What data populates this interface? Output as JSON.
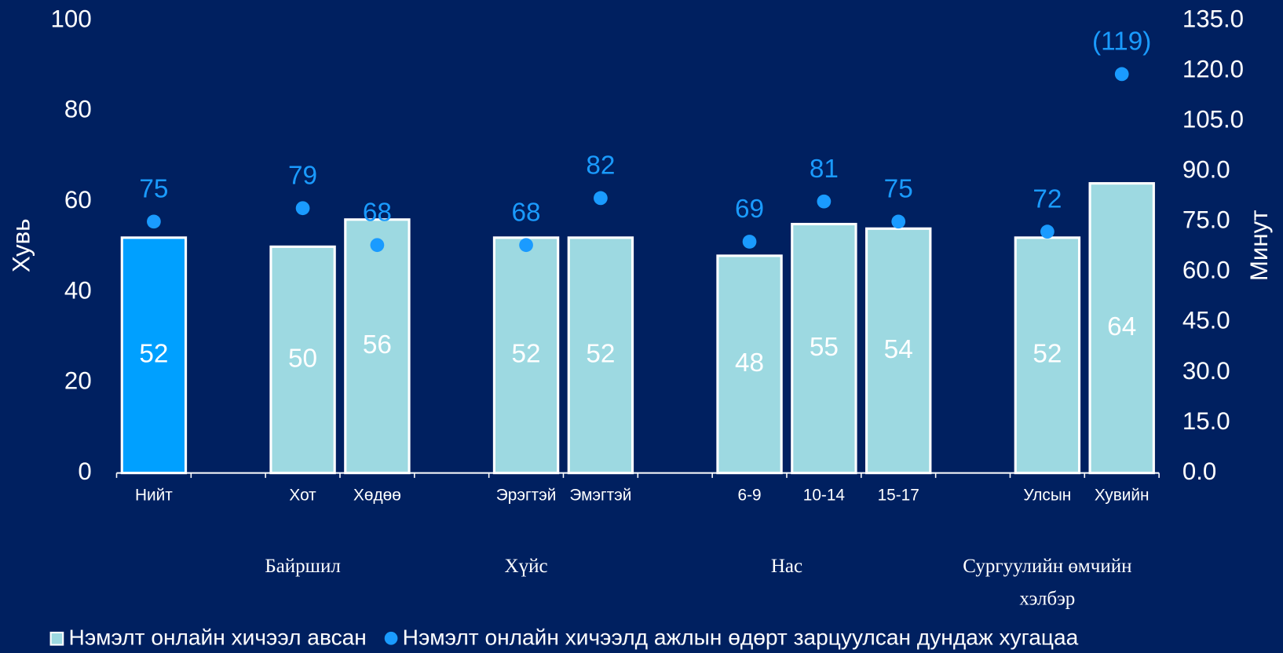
{
  "chart_data": {
    "type": "bar",
    "categories": [
      "Нийт",
      null,
      "Хот",
      "Хөдөө",
      null,
      "Эрэгтэй",
      "Эмэгтэй",
      null,
      "6-9",
      "10-14",
      "15-17",
      null,
      "Улсын",
      "Хувийн"
    ],
    "groups": [
      "Байршил",
      "Хүйс",
      "Нас",
      "Сургуулийн өмчийн хэлбэр"
    ],
    "y_label": "Хувь",
    "y2_label": "Минут",
    "ylim": [
      0,
      100
    ],
    "yticks": [
      0,
      20,
      40,
      60,
      80,
      100
    ],
    "y2lim": [
      0,
      135
    ],
    "y2ticks": [
      {
        "value": 0,
        "label": "0.0"
      },
      {
        "value": 15,
        "label": "15.0"
      },
      {
        "value": 30,
        "label": "30.0"
      },
      {
        "value": 45,
        "label": "45.0"
      },
      {
        "value": 60,
        "label": "60.0"
      },
      {
        "value": 75,
        "label": "75.0"
      },
      {
        "value": 90,
        "label": "90.0"
      },
      {
        "value": 105,
        "label": "105.0"
      },
      {
        "value": 120,
        "label": "120.0"
      },
      {
        "value": 135,
        "label": "135.0"
      }
    ],
    "series": [
      {
        "name": "Нэмэлт онлайн хичээл авсан",
        "type": "bar",
        "color": "#9dd9e1",
        "colors": [
          "#00a0ff",
          null,
          "#9dd9e1",
          "#9dd9e1",
          null,
          "#9dd9e1",
          "#9dd9e1",
          null,
          "#9dd9e1",
          "#9dd9e1",
          "#9dd9e1",
          null,
          "#9dd9e1",
          "#9dd9e1"
        ],
        "values": [
          52,
          null,
          50,
          56,
          null,
          52,
          52,
          null,
          48,
          55,
          54,
          null,
          52,
          64
        ]
      },
      {
        "name": "Нэмэлт онлайн хичээлд ажлын өдөрт зарцуулсан дундаж хугацаа",
        "type": "scatter",
        "axis": "y2",
        "color": "#1a9bff",
        "values": [
          75,
          null,
          79,
          68,
          null,
          68,
          82,
          null,
          69,
          81,
          75,
          null,
          72,
          119
        ],
        "value_labels": [
          null,
          null,
          null,
          null,
          null,
          null,
          null,
          null,
          null,
          null,
          null,
          null,
          null,
          "(119)"
        ]
      }
    ]
  }
}
